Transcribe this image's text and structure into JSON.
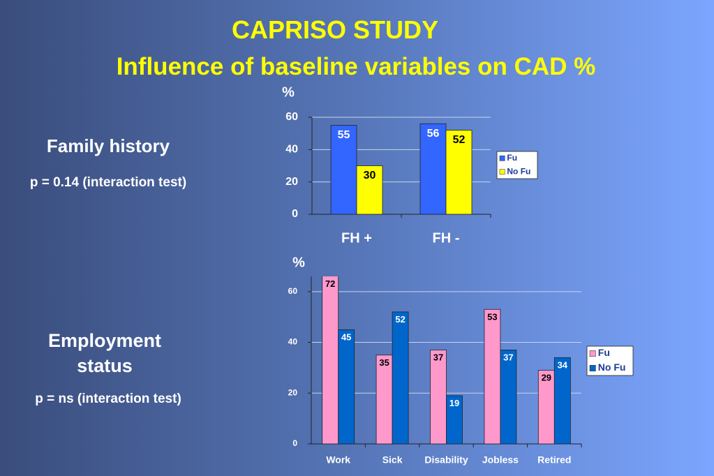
{
  "title": "CAPRISO STUDY",
  "subtitle": "Influence of baseline variables on CAD %",
  "panels": [
    {
      "label": "Family history",
      "note": "p = 0.14 (interaction test)"
    },
    {
      "label": "Employment status",
      "note": "p = ns (interaction test)"
    }
  ],
  "chart_data": [
    {
      "type": "bar",
      "y_label": "%",
      "categories": [
        "FH +",
        "FH -"
      ],
      "series": [
        {
          "name": "Fu",
          "color": "#3366ff",
          "values": [
            55,
            56
          ]
        },
        {
          "name": "No Fu",
          "color": "#ffff00",
          "values": [
            30,
            52
          ]
        }
      ],
      "ylim": [
        0,
        60
      ],
      "yticks": [
        0,
        20,
        40,
        60
      ],
      "grid": true,
      "legend": "right"
    },
    {
      "type": "bar",
      "y_label": "%",
      "categories": [
        "Work",
        "Sick",
        "Disability",
        "Jobless",
        "Retired"
      ],
      "series": [
        {
          "name": "Fu",
          "color": "#ff99cc",
          "values": [
            72,
            35,
            37,
            53,
            29
          ]
        },
        {
          "name": "No Fu",
          "color": "#0066cc",
          "values": [
            45,
            52,
            19,
            37,
            34
          ]
        }
      ],
      "ylim": [
        0,
        66
      ],
      "yticks": [
        0,
        20,
        40,
        60
      ],
      "grid": true,
      "legend": "right"
    }
  ]
}
